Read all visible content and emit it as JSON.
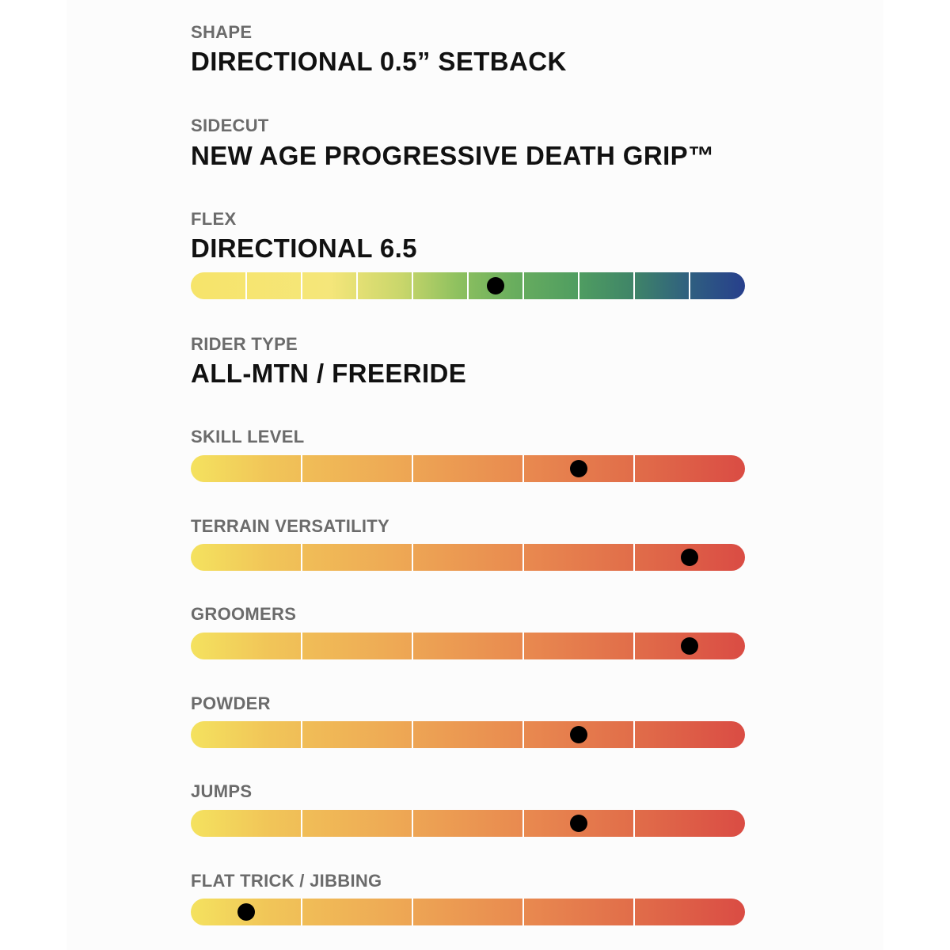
{
  "specs": {
    "shape": {
      "label": "SHAPE",
      "value": "DIRECTIONAL 0.5” SETBACK"
    },
    "sidecut": {
      "label": "SIDECUT",
      "value": "NEW AGE PROGRESSIVE DEATH GRIP™"
    },
    "flex": {
      "label": "FLEX",
      "value": "DIRECTIONAL 6.5",
      "segments": 10,
      "level": 5.5
    },
    "rider_type": {
      "label": "RIDER TYPE",
      "value": "ALL-MTN / FREERIDE"
    }
  },
  "ratings": [
    {
      "label": "SKILL LEVEL",
      "segments": 5,
      "level": 3.5
    },
    {
      "label": "TERRAIN VERSATILITY",
      "segments": 5,
      "level": 4.5
    },
    {
      "label": "GROOMERS",
      "segments": 5,
      "level": 4.5
    },
    {
      "label": "POWDER",
      "segments": 5,
      "level": 3.5
    },
    {
      "label": "JUMPS",
      "segments": 5,
      "level": 3.5
    },
    {
      "label": "FLAT TRICK / JIBBING",
      "segments": 5,
      "level": 0.5
    }
  ],
  "colors": {
    "label": "#6b6b6b",
    "value": "#111111",
    "marker": "#000000",
    "flex_start": "#f6e46a",
    "flex_end": "#273f8c",
    "rating_start": "#f4e25f",
    "rating_end": "#da4c44"
  }
}
